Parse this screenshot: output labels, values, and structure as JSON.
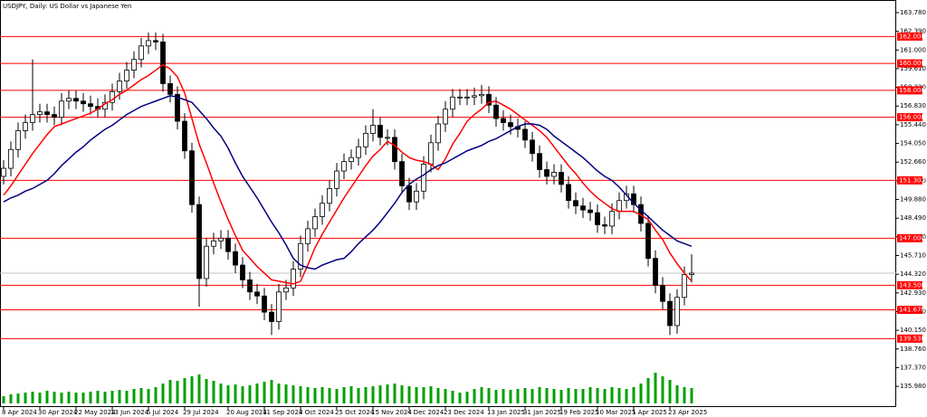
{
  "chart_data": {
    "type": "candlestick",
    "title": "USDJPY, Daily:  US Dollar vs Japanese Yen",
    "categories": [
      "8 Apr 2024",
      null,
      null,
      null,
      null,
      "30 Apr 2024",
      null,
      null,
      null,
      null,
      "22 May 2024",
      null,
      null,
      null,
      null,
      "13 Jun 2024",
      null,
      null,
      null,
      null,
      "5 Jul 2024",
      null,
      null,
      null,
      null,
      "29 Jul 2024",
      null,
      null,
      null,
      null,
      null,
      "20 Aug 2024",
      null,
      null,
      null,
      null,
      "11 Sep 2024",
      null,
      null,
      null,
      null,
      "3 Oct 2024",
      null,
      null,
      null,
      null,
      "25 Oct 2024",
      null,
      null,
      null,
      null,
      "15 Nov 2024",
      null,
      null,
      null,
      null,
      "4 Dec 2024",
      null,
      null,
      null,
      null,
      "23 Dec 2024",
      null,
      null,
      null,
      null,
      null,
      "13 Jan 2025",
      null,
      null,
      null,
      null,
      "31 Jan 2025",
      null,
      null,
      null,
      null,
      "19 Feb 2025",
      null,
      null,
      null,
      null,
      "10 Mar 2025",
      null,
      null,
      null,
      null,
      "1 Apr 2025",
      null,
      null,
      null,
      null,
      "23 Apr 2025",
      null,
      null,
      null
    ],
    "open": [
      151.6,
      152.2,
      153.6,
      155.0,
      155.6,
      156.2,
      156.4,
      156.2,
      156.0,
      157.2,
      157.4,
      157.2,
      157.0,
      156.8,
      156.6,
      157.1,
      157.9,
      158.7,
      159.5,
      160.3,
      161.3,
      161.7,
      161.6,
      158.5,
      157.7,
      155.7,
      153.5,
      149.5,
      144.0,
      146.4,
      146.8,
      147.0,
      146.0,
      145.0,
      143.9,
      143.0,
      142.7,
      141.5,
      140.8,
      143.0,
      143.3,
      144.7,
      146.6,
      147.7,
      148.6,
      149.6,
      150.7,
      152.0,
      152.7,
      153.0,
      153.8,
      154.8,
      155.4,
      154.5,
      154.5,
      152.7,
      150.9,
      149.7,
      150.5,
      152.5,
      154.1,
      155.5,
      156.6,
      157.5,
      157.5,
      157.5,
      157.6,
      157.7,
      156.9,
      155.9,
      155.6,
      155.3,
      155.1,
      154.3,
      153.3,
      152.1,
      151.6,
      151.9,
      151.0,
      149.8,
      149.4,
      149.1,
      148.9,
      148.0,
      147.9,
      149.0,
      149.8,
      150.3,
      149.5,
      148.1,
      145.5,
      143.5,
      142.3,
      140.5,
      142.6,
      144.3
    ],
    "high": [
      152.8,
      154.2,
      155.6,
      156.2,
      160.3,
      157.0,
      157.0,
      156.8,
      157.8,
      158.0,
      158.0,
      157.8,
      157.6,
      157.4,
      157.7,
      158.5,
      159.3,
      160.1,
      160.9,
      161.9,
      162.3,
      162.3,
      162.2,
      159.1,
      158.3,
      156.3,
      154.1,
      150.1,
      147.0,
      147.4,
      147.6,
      147.6,
      146.6,
      145.6,
      144.5,
      143.6,
      143.3,
      142.1,
      143.6,
      143.9,
      145.3,
      147.2,
      148.3,
      149.2,
      150.2,
      151.3,
      152.6,
      153.3,
      153.6,
      154.4,
      155.4,
      156.6,
      156.0,
      155.1,
      155.1,
      153.3,
      151.5,
      151.1,
      153.1,
      154.7,
      156.1,
      157.2,
      158.1,
      158.1,
      158.1,
      158.2,
      158.4,
      158.3,
      157.5,
      156.5,
      156.2,
      155.9,
      155.7,
      154.9,
      153.9,
      152.7,
      152.5,
      152.5,
      151.6,
      150.4,
      150.0,
      149.7,
      149.5,
      148.6,
      149.6,
      150.4,
      150.9,
      150.9,
      150.1,
      148.7,
      146.1,
      144.1,
      142.9,
      143.2,
      144.9,
      145.8
    ],
    "low": [
      151.0,
      151.6,
      153.0,
      154.4,
      155.0,
      155.6,
      155.6,
      155.4,
      155.4,
      156.6,
      156.6,
      156.4,
      156.2,
      156.0,
      156.0,
      156.5,
      157.3,
      158.1,
      158.9,
      159.7,
      160.7,
      161.0,
      157.9,
      157.1,
      155.1,
      152.9,
      148.9,
      141.9,
      143.4,
      145.8,
      146.2,
      145.4,
      144.4,
      143.3,
      142.4,
      142.1,
      140.9,
      139.8,
      140.2,
      142.4,
      142.7,
      144.1,
      146.0,
      147.1,
      148.0,
      149.0,
      150.1,
      151.4,
      152.1,
      152.4,
      153.2,
      154.2,
      153.9,
      153.9,
      152.1,
      150.3,
      149.1,
      149.1,
      149.9,
      151.9,
      153.5,
      154.9,
      156.0,
      156.9,
      156.9,
      156.9,
      157.0,
      156.3,
      155.3,
      155.0,
      154.7,
      154.5,
      153.7,
      152.7,
      151.5,
      151.0,
      151.0,
      150.4,
      149.2,
      148.8,
      148.5,
      148.3,
      147.4,
      147.3,
      147.3,
      148.4,
      149.2,
      148.9,
      147.5,
      144.9,
      142.9,
      141.7,
      139.8,
      139.9,
      142.0,
      143.7
    ],
    "close": [
      152.2,
      153.6,
      155.0,
      155.6,
      156.2,
      156.4,
      156.2,
      156.0,
      157.2,
      157.4,
      157.2,
      157.0,
      156.8,
      156.6,
      157.1,
      157.9,
      158.7,
      159.5,
      160.3,
      161.3,
      161.7,
      161.6,
      158.5,
      157.7,
      155.7,
      153.5,
      149.5,
      144.0,
      146.4,
      146.8,
      147.0,
      146.0,
      145.0,
      143.9,
      143.0,
      142.7,
      141.5,
      140.8,
      143.0,
      143.3,
      144.7,
      146.6,
      147.7,
      148.6,
      149.6,
      150.7,
      152.0,
      152.7,
      153.0,
      153.8,
      154.8,
      155.4,
      154.5,
      154.5,
      152.7,
      150.9,
      149.7,
      150.5,
      152.5,
      154.1,
      155.5,
      156.6,
      157.5,
      157.5,
      157.5,
      157.6,
      157.7,
      156.9,
      155.9,
      155.6,
      155.3,
      155.1,
      154.3,
      153.3,
      152.1,
      151.6,
      151.9,
      151.0,
      149.8,
      149.4,
      149.1,
      148.9,
      148.0,
      147.9,
      149.0,
      149.8,
      150.3,
      149.5,
      148.1,
      145.5,
      143.5,
      142.3,
      140.5,
      142.6,
      144.3,
      144.4
    ],
    "moving_averages": [
      {
        "color": "#ff0000",
        "values": [
          150.2,
          150.9,
          151.7,
          152.5,
          153.3,
          154.0,
          154.7,
          155.3,
          155.5,
          155.7,
          155.9,
          156.1,
          156.3,
          156.6,
          157.0,
          157.3,
          157.7,
          158.0,
          158.4,
          158.8,
          159.1,
          159.5,
          159.9,
          159.6,
          159.0,
          157.8,
          155.9,
          154.0,
          152.6,
          151.1,
          149.7,
          148.4,
          147.2,
          146.1,
          145.5,
          144.9,
          144.4,
          143.9,
          143.8,
          143.7,
          143.6,
          143.8,
          145.0,
          146.3,
          147.3,
          148.2,
          149.1,
          150.0,
          150.8,
          151.6,
          152.4,
          153.1,
          153.6,
          154.2,
          153.9,
          153.4,
          153.0,
          152.8,
          152.7,
          152.5,
          152.1,
          152.9,
          154.0,
          154.8,
          155.7,
          156.2,
          156.6,
          157.1,
          157.2,
          156.9,
          156.6,
          156.2,
          155.8,
          155.4,
          155.0,
          154.5,
          153.8,
          153.1,
          152.4,
          151.8,
          151.1,
          150.5,
          150.0,
          149.6,
          149.2,
          149.0,
          149.0,
          149.0,
          148.7,
          148.4,
          147.6,
          146.9,
          145.9,
          145.1,
          144.4,
          143.8
        ]
      },
      {
        "color": "#000080",
        "values": [
          149.7,
          150.0,
          150.2,
          150.5,
          150.7,
          151.0,
          151.3,
          151.8,
          152.4,
          152.9,
          153.4,
          153.8,
          154.3,
          154.7,
          155.1,
          155.4,
          155.8,
          156.2,
          156.5,
          156.8,
          157.0,
          157.2,
          157.4,
          157.6,
          157.5,
          157.3,
          157.1,
          156.5,
          155.9,
          155.2,
          154.6,
          153.7,
          152.6,
          151.6,
          150.8,
          150.0,
          149.1,
          148.2,
          147.4,
          146.5,
          145.5,
          145.0,
          144.8,
          144.7,
          145.0,
          145.2,
          145.4,
          145.5,
          146.0,
          146.6,
          147.1,
          147.6,
          148.2,
          148.9,
          149.6,
          150.4,
          151.0,
          151.4,
          151.7,
          152.1,
          152.4,
          152.6,
          152.9,
          153.2,
          153.5,
          153.7,
          153.9,
          154.2,
          154.4,
          154.7,
          155.0,
          155.3,
          155.5,
          155.5,
          155.4,
          155.1,
          154.6,
          154.2,
          153.8,
          153.4,
          153.0,
          152.5,
          152.0,
          151.6,
          151.3,
          150.8,
          150.2,
          149.6,
          149.1,
          148.6,
          148.1,
          147.6,
          147.2,
          146.8,
          146.6,
          146.4
        ]
      }
    ],
    "volume": {
      "color": "#00a000",
      "values": [
        8,
        10,
        11,
        12,
        13,
        12,
        14,
        13,
        12,
        13,
        12,
        12,
        13,
        14,
        13,
        14,
        15,
        14,
        16,
        17,
        16,
        18,
        22,
        26,
        25,
        28,
        30,
        32,
        27,
        25,
        22,
        20,
        21,
        19,
        20,
        22,
        24,
        26,
        22,
        21,
        20,
        19,
        18,
        17,
        18,
        17,
        16,
        18,
        19,
        17,
        18,
        19,
        20,
        21,
        22,
        20,
        19,
        18,
        18,
        19,
        17,
        16,
        14,
        12,
        13,
        16,
        18,
        17,
        15,
        16,
        15,
        16,
        17,
        16,
        18,
        17,
        16,
        15,
        17,
        16,
        16,
        18,
        17,
        16,
        18,
        17,
        16,
        18,
        22,
        28,
        34,
        30,
        26,
        20,
        18,
        17
      ]
    },
    "levels": [
      {
        "value": 162,
        "label": "162.000"
      },
      {
        "value": 160,
        "label": "160.000"
      },
      {
        "value": 158,
        "label": "158.000"
      },
      {
        "value": 156,
        "label": "156.000"
      },
      {
        "value": 151.302,
        "label": "151.302"
      },
      {
        "value": 147,
        "label": "147.000"
      },
      {
        "value": 143.5,
        "label": "143.500"
      },
      {
        "value": 141.67,
        "label": "141.670"
      },
      {
        "value": 139.53,
        "label": "139.530"
      }
    ],
    "level_color": "#ff0000",
    "last_price": 144.4,
    "last_price_color": "#c0c0c0",
    "ylim": [
      134.44,
      164.45
    ],
    "yticks": [
      {
        "value": 163.78,
        "label": "163.780"
      },
      {
        "value": 162.39,
        "label": "162.390"
      },
      {
        "value": 161,
        "label": "161.000"
      },
      {
        "value": 159.61,
        "label": "159.610"
      },
      {
        "value": 158.22,
        "label": "158.220"
      },
      {
        "value": 156.83,
        "label": "156.830"
      },
      {
        "value": 155.44,
        "label": "155.440"
      },
      {
        "value": 154.05,
        "label": "154.050"
      },
      {
        "value": 152.66,
        "label": "152.660"
      },
      {
        "value": 151.27,
        "label": "151.270"
      },
      {
        "value": 149.88,
        "label": "149.880"
      },
      {
        "value": 148.49,
        "label": "148.490"
      },
      {
        "value": 147.1,
        "label": "147.100"
      },
      {
        "value": 145.71,
        "label": "145.710"
      },
      {
        "value": 144.32,
        "label": "144.320"
      },
      {
        "value": 142.93,
        "label": "142.930"
      },
      {
        "value": 141.54,
        "label": "141.540"
      },
      {
        "value": 140.15,
        "label": "140.150"
      },
      {
        "value": 138.76,
        "label": "138.760"
      },
      {
        "value": 137.37,
        "label": "137.370"
      },
      {
        "value": 135.98,
        "label": "135.980"
      }
    ],
    "grid": false
  }
}
